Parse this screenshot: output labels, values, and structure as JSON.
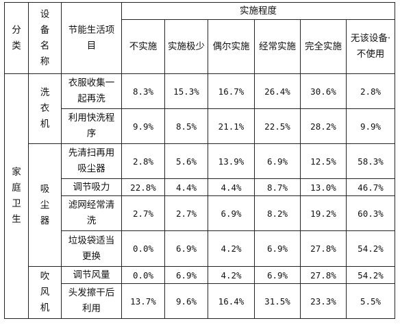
{
  "headers": {
    "category": "分类",
    "device": "设备名称",
    "item": "节能生活项目",
    "degree": "实施程度",
    "levels": [
      "不实施",
      "实施极少",
      "偶尔实施",
      "经常实施",
      "完全实施",
      "无该设备·不使用"
    ]
  },
  "category": "家庭卫生",
  "devices": [
    "洗衣机",
    "吸尘器",
    "吹风机"
  ],
  "rows": [
    {
      "item": "衣服收集一起再洗",
      "values": [
        "8.3%",
        "15.3%",
        "16.7%",
        "26.4%",
        "30.6%",
        "2.8%"
      ]
    },
    {
      "item": "利用快洗程序",
      "values": [
        "9.9%",
        "8.5%",
        "21.1%",
        "22.5%",
        "28.2%",
        "9.9%"
      ]
    },
    {
      "item": "先清扫再用吸尘器",
      "values": [
        "2.8%",
        "5.6%",
        "13.9%",
        "6.9%",
        "12.5%",
        "58.3%"
      ]
    },
    {
      "item": "调节吸力",
      "values": [
        "22.8%",
        "4.4%",
        "4.4%",
        "8.7%",
        "13.0%",
        "46.7%"
      ]
    },
    {
      "item": "滤网经常清洗",
      "values": [
        "2.7%",
        "2.7%",
        "6.9%",
        "8.2%",
        "19.2%",
        "60.3%"
      ]
    },
    {
      "item": "垃圾袋适当更换",
      "values": [
        "0.0%",
        "6.9%",
        "4.2%",
        "6.9%",
        "27.8%",
        "54.2%"
      ]
    },
    {
      "item": "调节风量",
      "values": [
        "0.0%",
        "6.9%",
        "4.2%",
        "6.9%",
        "27.8%",
        "54.2%"
      ]
    },
    {
      "item": "头发擦干后利用",
      "values": [
        "13.7%",
        "9.6%",
        "16.4%",
        "31.5%",
        "23.3%",
        "5.5%"
      ]
    }
  ]
}
